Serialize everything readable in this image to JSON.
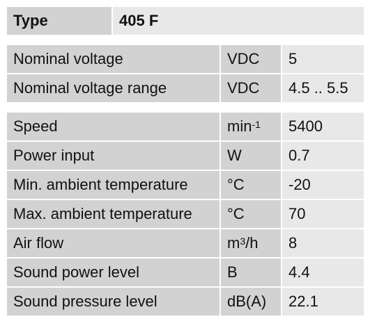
{
  "header": {
    "label": "Type",
    "value": "405 F"
  },
  "groups": [
    [
      {
        "label": "Nominal voltage",
        "unit": [
          "VDC"
        ],
        "value": "5"
      },
      {
        "label": "Nominal voltage range",
        "unit": [
          "VDC"
        ],
        "value": "4.5 .. 5.5"
      }
    ],
    [
      {
        "label": "Speed",
        "unit": [
          "min",
          "-1"
        ],
        "value": "5400"
      },
      {
        "label": "Power input",
        "unit": [
          "W"
        ],
        "value": "0.7"
      },
      {
        "label": "Min. ambient temperature",
        "unit": [
          "°C"
        ],
        "value": "-20"
      },
      {
        "label": "Max. ambient temperature",
        "unit": [
          "°C"
        ],
        "value": "70"
      },
      {
        "label": "Air flow",
        "unit": [
          "m",
          "3",
          "/h"
        ],
        "value": "8"
      },
      {
        "label": "Sound power level",
        "unit": [
          "B"
        ],
        "value": "4.4"
      },
      {
        "label": "Sound pressure level",
        "unit": [
          "dB(A)"
        ],
        "value": "22.1"
      }
    ]
  ]
}
